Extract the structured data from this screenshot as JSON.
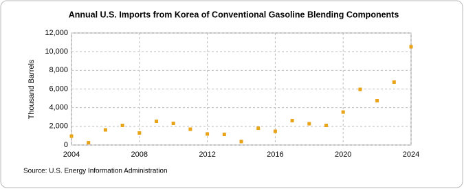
{
  "chart_data": {
    "type": "scatter",
    "title": "Annual U.S. Imports from Korea of Conventional Gasoline Blending Components",
    "y_label": "Thousand Barrels",
    "source": "Source: U.S. Energy Information Administration",
    "x": [
      2004,
      2005,
      2006,
      2007,
      2008,
      2009,
      2010,
      2011,
      2012,
      2013,
      2014,
      2015,
      2016,
      2017,
      2018,
      2019,
      2020,
      2021,
      2022,
      2023,
      2024
    ],
    "series": [
      {
        "name": "Imports",
        "color": "#e8a317",
        "values": [
          950,
          250,
          1620,
          2100,
          1290,
          2540,
          2320,
          1690,
          1180,
          1140,
          370,
          1800,
          1470,
          2610,
          2280,
          2100,
          3530,
          5960,
          4750,
          6740,
          10530
        ]
      }
    ],
    "xlim": [
      2004,
      2024
    ],
    "xticks": [
      2004,
      2008,
      2012,
      2016,
      2020,
      2024
    ],
    "ylim": [
      0,
      12000
    ],
    "yticks": [
      0,
      {
        "value": 2000,
        "label": "2,000"
      },
      {
        "value": 4000,
        "label": "4,000"
      },
      {
        "value": 6000,
        "label": "6,000"
      },
      {
        "value": 8000,
        "label": "8,000"
      },
      {
        "value": 10000,
        "label": "10,000"
      },
      {
        "value": 12000,
        "label": "12,000"
      }
    ],
    "grid": true
  }
}
